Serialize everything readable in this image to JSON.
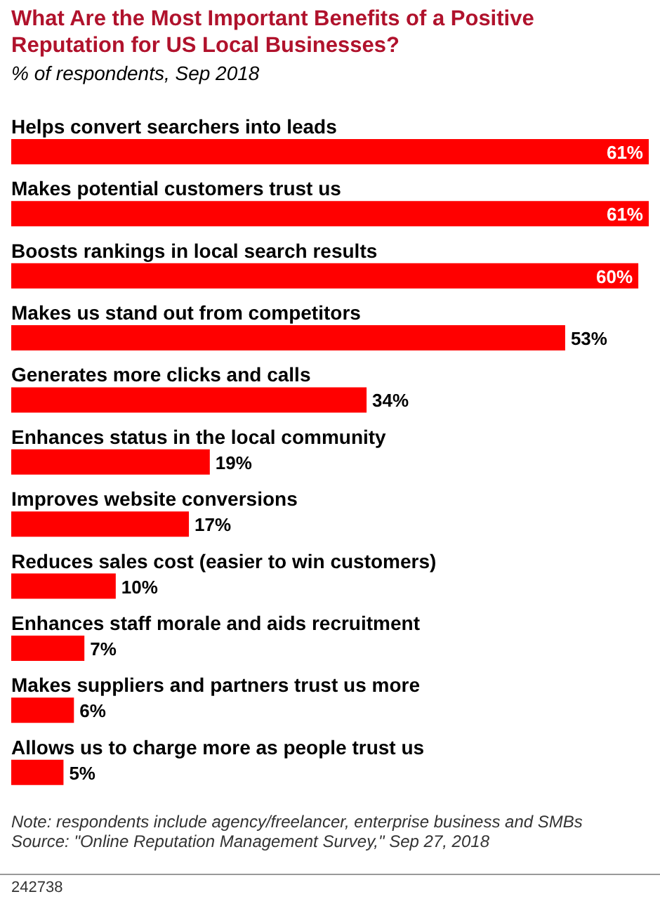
{
  "chart_data": {
    "type": "bar",
    "orientation": "horizontal",
    "title": "What Are the Most Important Benefits of a Positive Reputation for US Local Businesses?",
    "subtitle": "% of respondents, Sep 2018",
    "categories": [
      "Helps convert searchers into leads",
      "Makes potential customers trust us",
      "Boosts rankings in local search results",
      "Makes us stand out from competitors",
      "Generates more clicks and calls",
      "Enhances status in the local community",
      "Improves website conversions",
      "Reduces sales cost (easier to win customers)",
      "Enhances staff morale and aids recruitment",
      "Makes suppliers and partners trust us more",
      "Allows us to charge more as people trust us"
    ],
    "values": [
      61,
      61,
      60,
      53,
      34,
      19,
      17,
      10,
      7,
      6,
      5
    ],
    "value_labels": [
      "61%",
      "61%",
      "60%",
      "53%",
      "34%",
      "19%",
      "17%",
      "10%",
      "7%",
      "6%",
      "5%"
    ],
    "color": "#ff0000",
    "grid": false,
    "legend": false,
    "annotations": [
      "Note: respondents include agency/freelancer, enterprise business and SMBs",
      "Source: \"Online Reputation Management Survey,\" Sep 27, 2018",
      "242738"
    ]
  }
}
